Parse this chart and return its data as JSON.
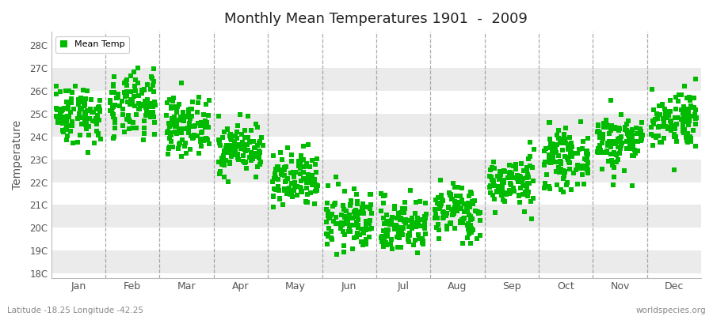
{
  "title": "Monthly Mean Temperatures 1901  -  2009",
  "ylabel": "Temperature",
  "months": [
    "Jan",
    "Feb",
    "Mar",
    "Apr",
    "May",
    "Jun",
    "Jul",
    "Aug",
    "Sep",
    "Oct",
    "Nov",
    "Dec"
  ],
  "yticks": [
    18,
    19,
    20,
    21,
    22,
    23,
    24,
    25,
    26,
    27,
    28
  ],
  "ylim": [
    17.8,
    28.6
  ],
  "xlim": [
    0,
    12
  ],
  "dot_color": "#00bb00",
  "marker": "s",
  "marker_size": 4,
  "background_color": "#ffffff",
  "band_colors": [
    "#ffffff",
    "#ebebeb",
    "#ffffff",
    "#ebebeb",
    "#ffffff",
    "#ebebeb",
    "#ffffff",
    "#ebebeb",
    "#ffffff",
    "#ebebeb"
  ],
  "grid_color": "#888888",
  "footer_left": "Latitude -18.25 Longitude -42.25",
  "footer_right": "worldspecies.org",
  "legend_label": "Mean Temp",
  "mean_temps": [
    25.0,
    25.3,
    24.5,
    23.5,
    22.0,
    20.3,
    20.1,
    20.7,
    22.0,
    23.0,
    23.8,
    24.8
  ],
  "std_temps": [
    0.65,
    0.72,
    0.6,
    0.55,
    0.65,
    0.65,
    0.6,
    0.6,
    0.55,
    0.6,
    0.65,
    0.65
  ],
  "n_years": 109
}
